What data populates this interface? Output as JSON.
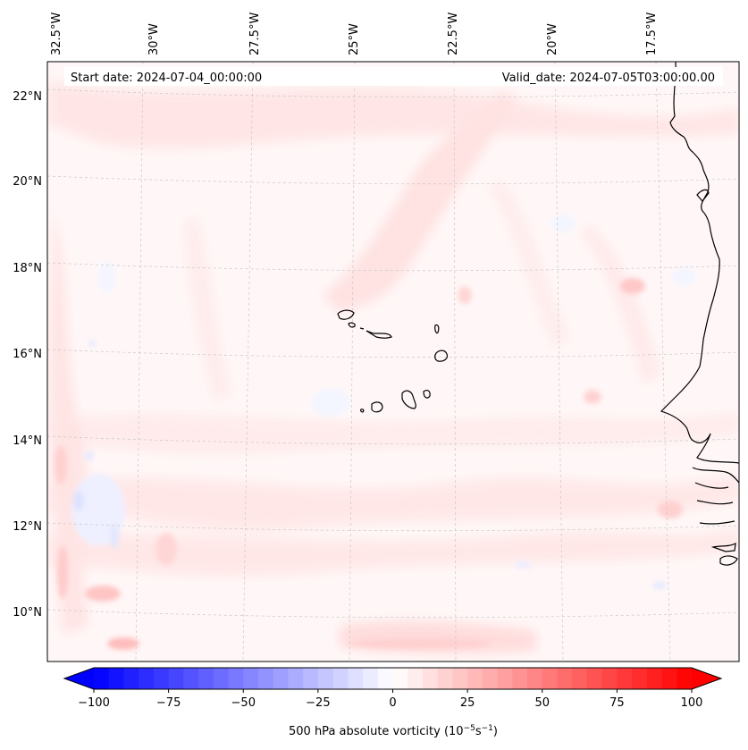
{
  "map": {
    "start_date_label": "Start date: 2024-07-04_00:00:00",
    "valid_date_label": "Valid_date: 2024-07-05T03:00:00.00",
    "lon_labels": [
      "32.5°W",
      "30°W",
      "27.5°W",
      "25°W",
      "22.5°W",
      "20°W",
      "17.5°W"
    ],
    "lat_labels": [
      "22°N",
      "20°N",
      "18°N",
      "16°N",
      "14°N",
      "12°N",
      "10°N"
    ],
    "background_color": "#fff7f7",
    "land_outline_color": "#000000",
    "gridline_color": "#c8c8c8"
  },
  "colorbar": {
    "title_prefix": "500 hPa absolute vorticity (10",
    "title_exp1": "−5",
    "title_mid": "s",
    "title_exp2": "−1",
    "title_suffix": ")",
    "min": -100,
    "max": 100,
    "step": 5,
    "ticks": [
      "−100",
      "−75",
      "−50",
      "−25",
      "0",
      "25",
      "50",
      "75",
      "100"
    ],
    "colormap": "bwr",
    "extend": "both"
  }
}
